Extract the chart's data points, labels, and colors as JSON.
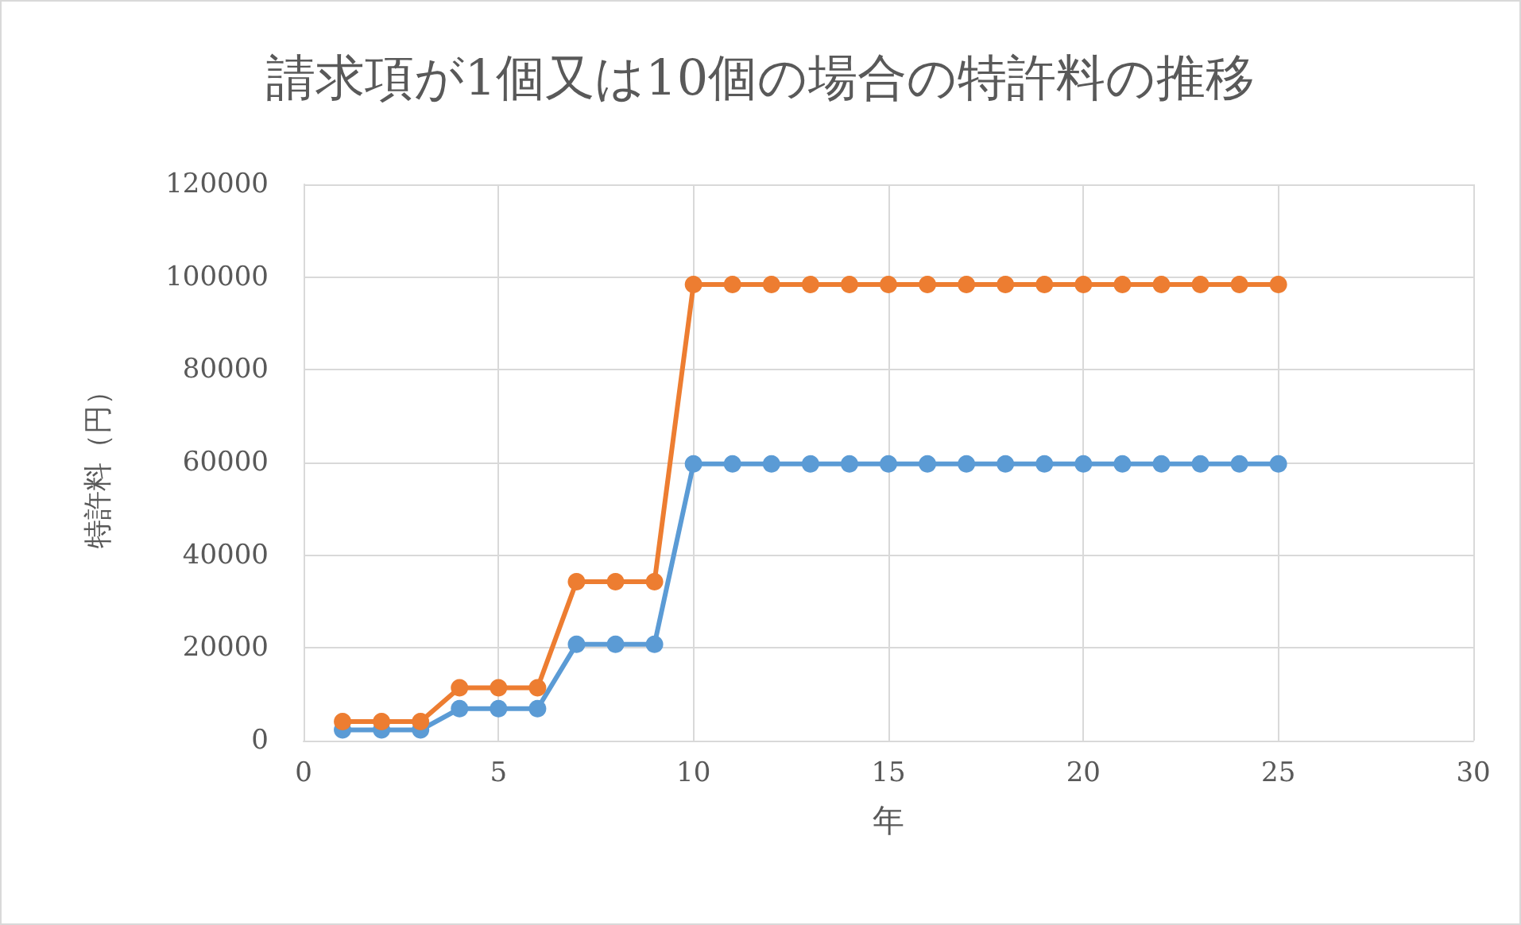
{
  "chart_data": {
    "type": "line",
    "title": "請求項が1個又は10個の場合の特許料の推移",
    "xlabel": "年",
    "ylabel": "特許料（円）",
    "x": [
      1,
      2,
      3,
      4,
      5,
      6,
      7,
      8,
      9,
      10,
      11,
      12,
      13,
      14,
      15,
      16,
      17,
      18,
      19,
      20,
      21,
      22,
      23,
      24,
      25
    ],
    "series": [
      {
        "color": "#5b9bd5",
        "values": [
          2300,
          2300,
          2300,
          6900,
          6900,
          6900,
          20800,
          20800,
          20800,
          59700,
          59700,
          59700,
          59700,
          59700,
          59700,
          59700,
          59700,
          59700,
          59700,
          59700,
          59700,
          59700,
          59700,
          59700,
          59700
        ]
      },
      {
        "color": "#ed7d31",
        "values": [
          4100,
          4100,
          4100,
          11400,
          11400,
          11400,
          34300,
          34300,
          34300,
          98400,
          98400,
          98400,
          98400,
          98400,
          98400,
          98400,
          98400,
          98400,
          98400,
          98400,
          98400,
          98400,
          98400,
          98400,
          98400
        ]
      }
    ],
    "xlim": [
      0,
      30
    ],
    "xticks": [
      0,
      5,
      10,
      15,
      20,
      25,
      30
    ],
    "ylim": [
      0,
      120000
    ],
    "yticks": [
      0,
      20000,
      40000,
      60000,
      80000,
      100000,
      120000
    ],
    "grid": true,
    "marker": "circle",
    "line_style": "solid"
  }
}
